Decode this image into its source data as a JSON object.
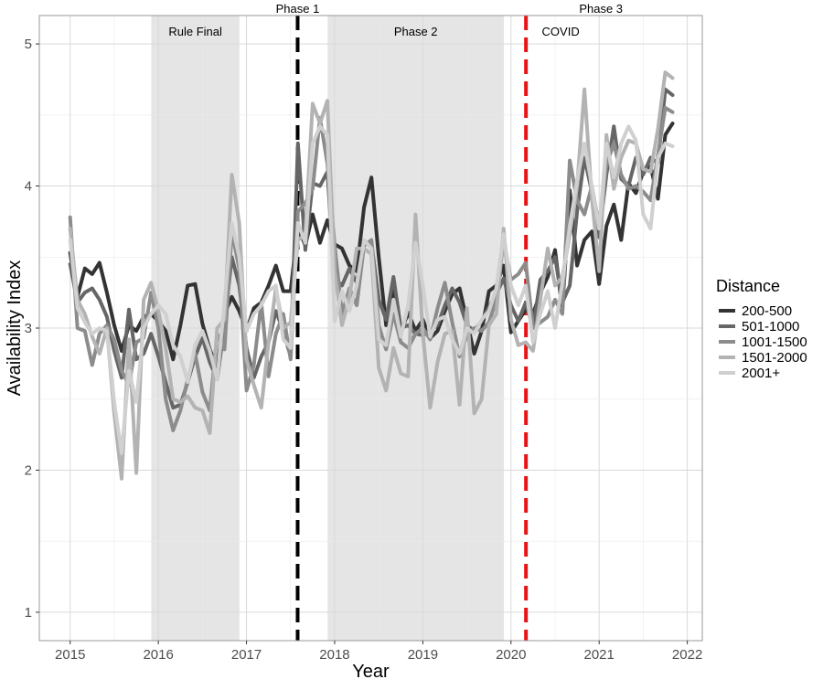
{
  "chart_data": {
    "type": "line",
    "xlabel": "Year",
    "ylabel": "Availability Index",
    "xlim": [
      2014.65,
      2022.17
    ],
    "ylim": [
      0.8,
      5.2
    ],
    "x_ticks": [
      "2015",
      "2016",
      "2017",
      "2018",
      "2019",
      "2020",
      "2021",
      "2022"
    ],
    "y_ticks": [
      "1",
      "2",
      "3",
      "4",
      "5"
    ],
    "grid": true,
    "legend_title": "Distance",
    "legend_position": "right",
    "shaded_regions": [
      {
        "label": "Rule Final",
        "x_start": 2015.92,
        "x_end": 2016.92
      },
      {
        "label": "Phase 2",
        "x_start": 2017.92,
        "x_end": 2019.92
      }
    ],
    "vertical_lines": [
      {
        "label": "Phase 1",
        "x": 2017.58,
        "color": "#000000",
        "style": "dashed"
      },
      {
        "label": "Phase 3",
        "x": 2020.17,
        "color": "#ee1111",
        "style": "dashed"
      }
    ],
    "annotations": [
      {
        "text": "COVID",
        "x": 2020.35,
        "y": 5.1
      }
    ],
    "x": [
      2015.0,
      2015.083,
      2015.167,
      2015.25,
      2015.333,
      2015.417,
      2015.5,
      2015.583,
      2015.667,
      2015.75,
      2015.833,
      2015.917,
      2016.0,
      2016.083,
      2016.167,
      2016.25,
      2016.333,
      2016.417,
      2016.5,
      2016.583,
      2016.667,
      2016.75,
      2016.833,
      2016.917,
      2017.0,
      2017.083,
      2017.167,
      2017.25,
      2017.333,
      2017.417,
      2017.5,
      2017.583,
      2017.667,
      2017.75,
      2017.833,
      2017.917,
      2018.0,
      2018.083,
      2018.167,
      2018.25,
      2018.333,
      2018.417,
      2018.5,
      2018.583,
      2018.667,
      2018.75,
      2018.833,
      2018.917,
      2019.0,
      2019.083,
      2019.167,
      2019.25,
      2019.333,
      2019.417,
      2019.5,
      2019.583,
      2019.667,
      2019.75,
      2019.833,
      2019.917,
      2020.0,
      2020.083,
      2020.167,
      2020.25,
      2020.333,
      2020.417,
      2020.5,
      2020.583,
      2020.667,
      2020.75,
      2020.833,
      2020.917,
      2021.0,
      2021.083,
      2021.167,
      2021.25,
      2021.333,
      2021.417,
      2021.5,
      2021.583,
      2021.667,
      2021.75,
      2021.833
    ],
    "series": [
      {
        "name": "200-500",
        "color": "#333333",
        "values": [
          3.53,
          3.22,
          3.42,
          3.38,
          3.46,
          3.25,
          3.02,
          2.84,
          3.02,
          2.98,
          3.08,
          3.1,
          3.05,
          2.98,
          2.78,
          3.02,
          3.3,
          3.31,
          3.03,
          2.85,
          2.72,
          3.1,
          3.22,
          3.12,
          2.98,
          3.14,
          3.18,
          3.3,
          3.44,
          3.26,
          3.26,
          3.72,
          3.58,
          3.8,
          3.6,
          3.76,
          3.59,
          3.56,
          3.44,
          3.4,
          3.85,
          4.06,
          3.5,
          3.02,
          3.27,
          2.97,
          3.11,
          2.98,
          3.06,
          2.93,
          2.98,
          3.12,
          3.24,
          3.28,
          3.05,
          2.82,
          2.98,
          3.26,
          3.3,
          3.44,
          2.97,
          3.05,
          3.13,
          3.1,
          3.25,
          3.36,
          3.55,
          3.12,
          3.97,
          3.44,
          3.62,
          3.68,
          3.31,
          3.72,
          3.87,
          3.62,
          4.02,
          3.95,
          4.1,
          4.14,
          3.91,
          4.36,
          4.44
        ]
      },
      {
        "name": "501-1000",
        "color": "#666666",
        "values": [
          3.45,
          3.18,
          3.25,
          3.28,
          3.2,
          3.08,
          2.84,
          2.65,
          3.13,
          2.78,
          2.82,
          2.96,
          2.8,
          2.62,
          2.44,
          2.46,
          2.62,
          2.8,
          2.93,
          2.76,
          2.64,
          3.02,
          3.5,
          3.3,
          2.86,
          2.65,
          2.8,
          2.9,
          3.12,
          2.98,
          2.8,
          4.3,
          3.55,
          4.02,
          4.0,
          4.1,
          3.35,
          3.3,
          3.42,
          3.32,
          3.6,
          3.6,
          3.2,
          3.06,
          3.36,
          3.0,
          3.02,
          2.96,
          2.95,
          2.98,
          3.02,
          3.16,
          3.28,
          3.18,
          3.02,
          2.98,
          3.05,
          3.15,
          3.24,
          3.35,
          3.16,
          3.05,
          3.18,
          3.0,
          3.34,
          3.4,
          3.5,
          3.18,
          3.3,
          3.82,
          4.2,
          3.96,
          3.64,
          4.08,
          4.42,
          4.05,
          4.0,
          4.2,
          4.08,
          4.2,
          4.16,
          4.68,
          4.64
        ]
      },
      {
        "name": "1001-1500",
        "color": "#8c8c8c",
        "values": [
          3.78,
          3.0,
          2.98,
          2.74,
          2.96,
          3.02,
          2.92,
          2.7,
          2.6,
          2.9,
          2.93,
          3.25,
          3.0,
          2.5,
          2.28,
          2.42,
          2.64,
          2.82,
          2.55,
          2.42,
          2.96,
          2.85,
          3.68,
          3.42,
          2.56,
          2.74,
          3.18,
          2.66,
          2.96,
          3.1,
          2.78,
          3.82,
          3.88,
          3.98,
          4.48,
          4.16,
          3.58,
          3.1,
          3.28,
          3.16,
          3.58,
          3.62,
          3.02,
          2.85,
          3.1,
          2.9,
          2.86,
          2.96,
          3.0,
          2.92,
          3.14,
          3.32,
          3.04,
          2.8,
          2.95,
          3.0,
          2.98,
          3.04,
          3.2,
          3.62,
          3.34,
          3.38,
          3.46,
          3.0,
          3.04,
          3.08,
          3.2,
          3.1,
          4.18,
          3.9,
          3.8,
          4.0,
          3.72,
          4.15,
          4.3,
          4.08,
          3.98,
          4.0,
          3.96,
          3.9,
          4.22,
          4.55,
          4.52
        ]
      },
      {
        "name": "1501-2000",
        "color": "#b3b3b3",
        "values": [
          3.7,
          3.2,
          3.1,
          2.94,
          2.82,
          3.0,
          2.4,
          1.94,
          2.92,
          1.98,
          3.2,
          3.32,
          3.12,
          2.86,
          2.5,
          2.48,
          2.52,
          2.44,
          2.42,
          2.26,
          3.0,
          3.06,
          4.08,
          3.74,
          2.78,
          2.6,
          2.44,
          2.9,
          3.28,
          3.0,
          3.04,
          3.62,
          3.66,
          4.58,
          4.44,
          4.6,
          3.4,
          3.02,
          3.22,
          3.56,
          3.56,
          3.52,
          2.72,
          2.56,
          2.86,
          2.68,
          2.66,
          3.8,
          2.96,
          2.44,
          2.76,
          2.96,
          2.98,
          2.46,
          3.14,
          2.4,
          2.5,
          3.02,
          3.1,
          3.7,
          3.06,
          2.88,
          2.9,
          2.84,
          3.2,
          3.56,
          3.3,
          3.36,
          3.66,
          4.0,
          4.68,
          3.92,
          3.4,
          4.36,
          3.98,
          4.2,
          4.32,
          4.3,
          4.12,
          4.1,
          4.4,
          4.8,
          4.76
        ]
      },
      {
        "name": "2001+",
        "color": "#d0d0d0",
        "values": [
          3.62,
          3.14,
          3.04,
          2.96,
          3.0,
          2.98,
          2.48,
          2.12,
          2.7,
          2.48,
          3.0,
          3.1,
          3.16,
          3.1,
          2.88,
          2.8,
          2.62,
          2.88,
          2.98,
          2.84,
          2.64,
          3.18,
          3.74,
          3.5,
          2.98,
          3.1,
          3.16,
          3.26,
          3.3,
          2.92,
          2.86,
          3.74,
          3.6,
          4.3,
          4.42,
          4.36,
          3.05,
          3.26,
          3.12,
          3.3,
          3.62,
          3.56,
          2.92,
          2.88,
          3.2,
          2.94,
          3.16,
          3.6,
          3.3,
          2.94,
          3.06,
          3.08,
          2.92,
          2.82,
          3.0,
          2.96,
          3.06,
          3.12,
          3.28,
          3.66,
          3.3,
          3.16,
          3.3,
          2.9,
          3.1,
          3.26,
          3.0,
          3.32,
          3.72,
          4.04,
          4.3,
          4.0,
          3.7,
          4.3,
          4.06,
          4.3,
          4.42,
          4.32,
          3.8,
          3.7,
          4.2,
          4.3,
          4.28
        ]
      }
    ]
  }
}
